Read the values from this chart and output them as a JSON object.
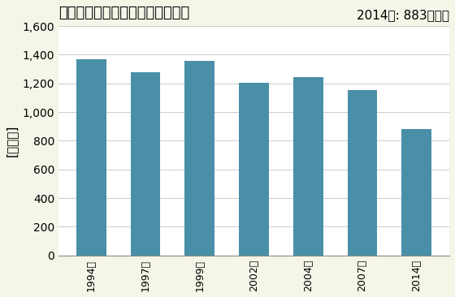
{
  "title": "飲食料品卸売業の事業所数の推移",
  "ylabel": "[事業所]",
  "annotation": "2014年: 883事業所",
  "categories": [
    "1994年",
    "1997年",
    "1999年",
    "2002年",
    "2004年",
    "2007年",
    "2014年"
  ],
  "values": [
    1370,
    1278,
    1358,
    1202,
    1243,
    1155,
    883
  ],
  "bar_color": "#4a8fa8",
  "ylim": [
    0,
    1600
  ],
  "yticks": [
    0,
    200,
    400,
    600,
    800,
    1000,
    1200,
    1400,
    1600
  ],
  "background_color": "#f5f5e8",
  "plot_bg_color": "#ffffff",
  "title_fontsize": 13,
  "annotation_fontsize": 11,
  "ylabel_fontsize": 11
}
